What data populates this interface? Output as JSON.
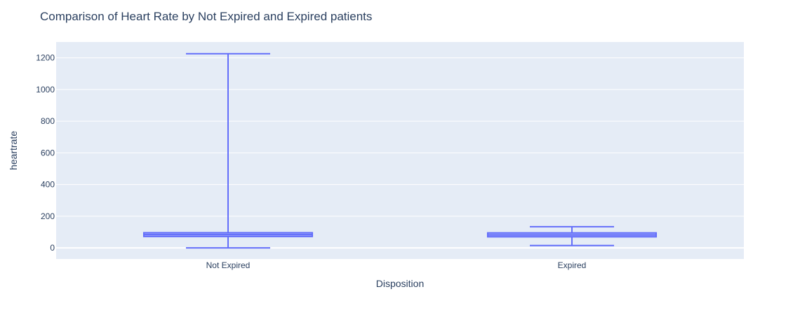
{
  "chart_data": {
    "type": "box",
    "title": "Comparison of Heart Rate by Not Expired and Expired patients",
    "xlabel": "Disposition",
    "ylabel": "heartrate",
    "categories": [
      "Not Expired",
      "Expired"
    ],
    "ylim": [
      -70,
      1300
    ],
    "yticks": [
      0,
      200,
      400,
      600,
      800,
      1000,
      1200
    ],
    "grid": true,
    "boxes": [
      {
        "name": "Not Expired",
        "min": 0,
        "q1": 72,
        "median": 84,
        "q3": 96,
        "max": 1226
      },
      {
        "name": "Expired",
        "min": 15,
        "q1": 70,
        "median": 82,
        "q3": 95,
        "max": 134
      }
    ],
    "colors": {
      "plot_bg": "#e5ecf6",
      "grid": "#ffffff",
      "box_line": "#636efa",
      "box_fill": "rgba(99,110,250,0.5)",
      "text": "#2a3f5f"
    }
  }
}
